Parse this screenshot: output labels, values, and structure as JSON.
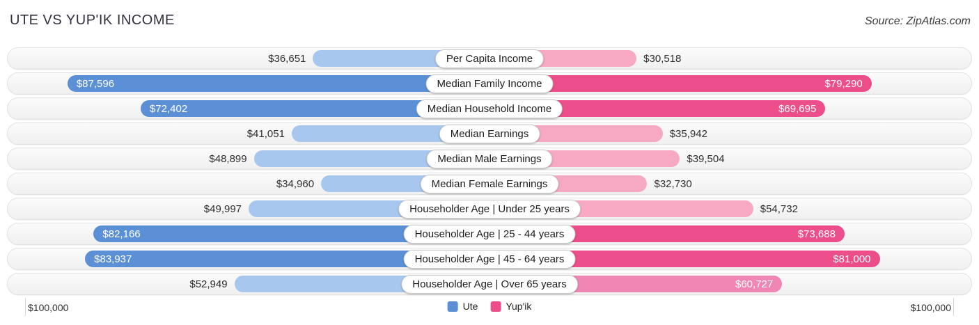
{
  "header": {
    "title": "UTE VS YUP'IK INCOME",
    "source": "Source: ZipAtlas.com"
  },
  "colors": {
    "ute_light": "#a7c7ef",
    "ute_dark": "#5b90d6",
    "yupik_light": "#f7a9c4",
    "yupik_dark": "#eb4e8a",
    "yupik_medium": "#ef86b3"
  },
  "axis": {
    "left_label": "$100,000",
    "right_label": "$100,000",
    "max": 100000
  },
  "legend": [
    {
      "name": "Ute",
      "color": "#5b90d6"
    },
    {
      "name": "Yup'ik",
      "color": "#eb4e8a"
    }
  ],
  "chart_data": {
    "type": "bar",
    "orientation": "diverging-horizontal",
    "title": "UTE VS YUP'IK INCOME",
    "axis_max": 100000,
    "categories": [
      "Per Capita Income",
      "Median Family Income",
      "Median Household Income",
      "Median Earnings",
      "Median Male Earnings",
      "Median Female Earnings",
      "Householder Age | Under 25 years",
      "Householder Age | 25 - 44 years",
      "Householder Age | 45 - 64 years",
      "Householder Age | Over 65 years"
    ],
    "series": [
      {
        "name": "Ute",
        "values": [
          36651,
          87596,
          72402,
          41051,
          48899,
          34960,
          49997,
          82166,
          83937,
          52949
        ]
      },
      {
        "name": "Yup'ik",
        "values": [
          30518,
          79290,
          69695,
          35942,
          39504,
          32730,
          54732,
          73688,
          81000,
          60727
        ]
      }
    ],
    "rows": [
      {
        "category": "Per Capita Income",
        "ute": {
          "value": 36651,
          "label": "$36,651",
          "shade": "light",
          "label_inside": false
        },
        "yupik": {
          "value": 30518,
          "label": "$30,518",
          "shade": "light",
          "label_inside": false
        }
      },
      {
        "category": "Median Family Income",
        "ute": {
          "value": 87596,
          "label": "$87,596",
          "shade": "dark",
          "label_inside": true
        },
        "yupik": {
          "value": 79290,
          "label": "$79,290",
          "shade": "dark",
          "label_inside": true
        }
      },
      {
        "category": "Median Household Income",
        "ute": {
          "value": 72402,
          "label": "$72,402",
          "shade": "dark",
          "label_inside": true
        },
        "yupik": {
          "value": 69695,
          "label": "$69,695",
          "shade": "dark",
          "label_inside": true
        }
      },
      {
        "category": "Median Earnings",
        "ute": {
          "value": 41051,
          "label": "$41,051",
          "shade": "light",
          "label_inside": false
        },
        "yupik": {
          "value": 35942,
          "label": "$35,942",
          "shade": "light",
          "label_inside": false
        }
      },
      {
        "category": "Median Male Earnings",
        "ute": {
          "value": 48899,
          "label": "$48,899",
          "shade": "light",
          "label_inside": false
        },
        "yupik": {
          "value": 39504,
          "label": "$39,504",
          "shade": "light",
          "label_inside": false
        }
      },
      {
        "category": "Median Female Earnings",
        "ute": {
          "value": 34960,
          "label": "$34,960",
          "shade": "light",
          "label_inside": false
        },
        "yupik": {
          "value": 32730,
          "label": "$32,730",
          "shade": "light",
          "label_inside": false
        }
      },
      {
        "category": "Householder Age | Under 25 years",
        "ute": {
          "value": 49997,
          "label": "$49,997",
          "shade": "light",
          "label_inside": false
        },
        "yupik": {
          "value": 54732,
          "label": "$54,732",
          "shade": "light",
          "label_inside": false
        }
      },
      {
        "category": "Householder Age | 25 - 44 years",
        "ute": {
          "value": 82166,
          "label": "$82,166",
          "shade": "dark",
          "label_inside": true
        },
        "yupik": {
          "value": 73688,
          "label": "$73,688",
          "shade": "dark",
          "label_inside": true
        }
      },
      {
        "category": "Householder Age | 45 - 64 years",
        "ute": {
          "value": 83937,
          "label": "$83,937",
          "shade": "dark",
          "label_inside": true
        },
        "yupik": {
          "value": 81000,
          "label": "$81,000",
          "shade": "dark",
          "label_inside": true
        }
      },
      {
        "category": "Householder Age | Over 65 years",
        "ute": {
          "value": 52949,
          "label": "$52,949",
          "shade": "light",
          "label_inside": false
        },
        "yupik": {
          "value": 60727,
          "label": "$60,727",
          "shade": "medium",
          "label_inside": true
        }
      }
    ]
  }
}
